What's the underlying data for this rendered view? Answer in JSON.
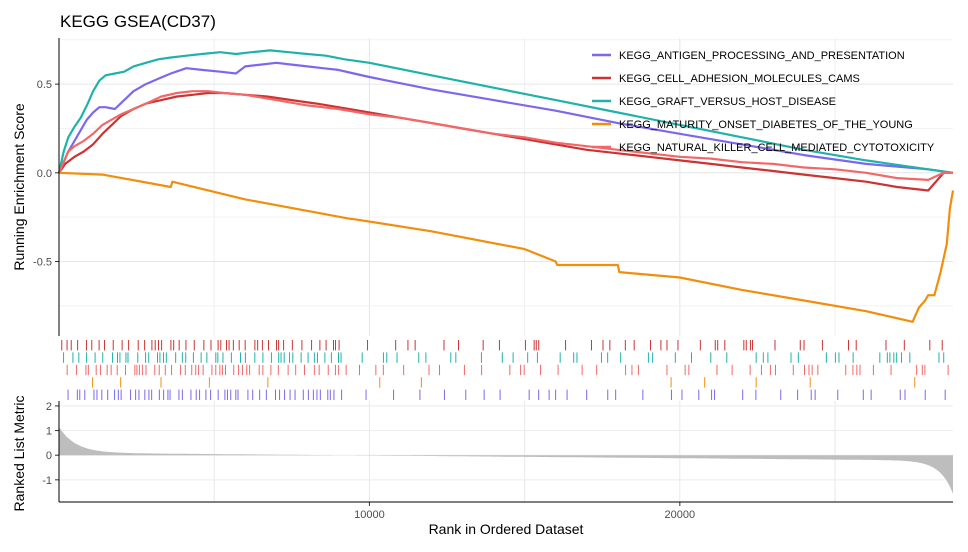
{
  "chart_data": {
    "type": "line",
    "title": "KEGG GSEA(CD37)",
    "xlabel": "Rank in Ordered Dataset",
    "ylabel_es": "Running Enrichment Score",
    "ylabel_metric": "Ranked List Metric",
    "x_range": [
      0,
      28800
    ],
    "x_ticks": [
      10000,
      20000
    ],
    "es_ylim": [
      -0.92,
      0.76
    ],
    "es_ticks": [
      0.5,
      0.0,
      -0.5
    ],
    "metric_ylim": [
      -1.9,
      2.2
    ],
    "metric_ticks": [
      2,
      1,
      0,
      -1
    ],
    "legend_position": "top-right",
    "series": [
      {
        "name": "KEGG_ANTIGEN_PROCESSING_AND_PRESENTATION",
        "color": "#7b68ee",
        "x": [
          0,
          150,
          300,
          500,
          700,
          900,
          1100,
          1300,
          1500,
          1800,
          2100,
          2400,
          2800,
          3200,
          3600,
          4100,
          4600,
          5200,
          5700,
          6000,
          6500,
          7000,
          7500,
          8000,
          8500,
          9000,
          9500,
          10000,
          12000,
          14000,
          16000,
          18000,
          20000,
          22000,
          24000,
          26000,
          28000,
          28800
        ],
        "y": [
          0.0,
          0.06,
          0.12,
          0.18,
          0.24,
          0.3,
          0.34,
          0.37,
          0.37,
          0.36,
          0.41,
          0.46,
          0.5,
          0.53,
          0.56,
          0.59,
          0.58,
          0.57,
          0.56,
          0.6,
          0.61,
          0.62,
          0.61,
          0.6,
          0.59,
          0.58,
          0.56,
          0.54,
          0.47,
          0.41,
          0.35,
          0.28,
          0.22,
          0.16,
          0.1,
          0.05,
          0.02,
          0.0
        ]
      },
      {
        "name": "KEGG_CELL_ADHESION_MOLECULES_CAMS",
        "color": "#cc3333",
        "x": [
          0,
          200,
          500,
          800,
          1100,
          1400,
          1700,
          2000,
          2400,
          2800,
          3300,
          3800,
          4300,
          4800,
          5300,
          6000,
          6700,
          7500,
          8300,
          9000,
          10000,
          11000,
          12000,
          13000,
          14000,
          15000,
          16000,
          17000,
          18000,
          19000,
          20000,
          21000,
          22000,
          23000,
          24000,
          25000,
          26000,
          27000,
          28000,
          28500,
          28800
        ],
        "y": [
          0.0,
          0.05,
          0.09,
          0.12,
          0.16,
          0.22,
          0.27,
          0.32,
          0.36,
          0.39,
          0.41,
          0.43,
          0.44,
          0.45,
          0.45,
          0.44,
          0.43,
          0.41,
          0.39,
          0.37,
          0.34,
          0.31,
          0.28,
          0.25,
          0.22,
          0.19,
          0.16,
          0.13,
          0.11,
          0.09,
          0.07,
          0.05,
          0.03,
          0.01,
          -0.01,
          -0.03,
          -0.05,
          -0.08,
          -0.1,
          0.0,
          0.0
        ]
      },
      {
        "name": "KEGG_GRAFT_VERSUS_HOST_DISEASE",
        "color": "#20b2aa",
        "x": [
          0,
          150,
          300,
          500,
          700,
          900,
          1100,
          1300,
          1500,
          1800,
          2100,
          2400,
          2800,
          3200,
          3600,
          4100,
          4600,
          5200,
          5700,
          6200,
          6800,
          7400,
          8000,
          8600,
          9200,
          10000,
          12000,
          14000,
          16000,
          18000,
          20000,
          22000,
          24000,
          26000,
          28000,
          28800
        ],
        "y": [
          0.0,
          0.12,
          0.2,
          0.26,
          0.31,
          0.38,
          0.46,
          0.52,
          0.55,
          0.56,
          0.57,
          0.6,
          0.62,
          0.64,
          0.65,
          0.66,
          0.67,
          0.68,
          0.67,
          0.68,
          0.69,
          0.68,
          0.67,
          0.66,
          0.64,
          0.62,
          0.55,
          0.48,
          0.41,
          0.34,
          0.27,
          0.2,
          0.13,
          0.07,
          0.02,
          0.0
        ]
      },
      {
        "name": "KEGG_MATURITY_ONSET_DIABETES_OF_THE_YOUNG",
        "color": "#f28e0c",
        "x": [
          0,
          1400,
          3600,
          3650,
          6000,
          9400,
          9450,
          12000,
          15000,
          16000,
          16050,
          18000,
          18050,
          20000,
          22000,
          24000,
          26000,
          27500,
          27700,
          27900,
          28000,
          28200,
          28400,
          28500,
          28600,
          28700,
          28800
        ],
        "y": [
          0.0,
          -0.01,
          -0.08,
          -0.05,
          -0.15,
          -0.26,
          -0.26,
          -0.33,
          -0.43,
          -0.5,
          -0.52,
          -0.52,
          -0.56,
          -0.59,
          -0.66,
          -0.72,
          -0.78,
          -0.84,
          -0.76,
          -0.72,
          -0.69,
          -0.69,
          -0.56,
          -0.48,
          -0.4,
          -0.2,
          -0.1
        ]
      },
      {
        "name": "KEGG_NATURAL_KILLER_CELL_MEDIATED_CYTOTOXICITY",
        "color": "#f26868",
        "x": [
          0,
          150,
          300,
          500,
          800,
          1100,
          1400,
          1700,
          2000,
          2400,
          2800,
          3300,
          3800,
          4300,
          4800,
          5300,
          6000,
          7000,
          8000,
          9000,
          10000,
          11000,
          12000,
          13000,
          14000,
          15000,
          16000,
          17000,
          18000,
          19000,
          20000,
          21000,
          22000,
          23000,
          24000,
          25000,
          26000,
          27000,
          28000,
          28500,
          28800
        ],
        "y": [
          0.0,
          0.06,
          0.12,
          0.15,
          0.18,
          0.22,
          0.27,
          0.3,
          0.33,
          0.36,
          0.39,
          0.43,
          0.45,
          0.46,
          0.46,
          0.45,
          0.44,
          0.41,
          0.38,
          0.36,
          0.33,
          0.31,
          0.28,
          0.25,
          0.22,
          0.2,
          0.17,
          0.15,
          0.13,
          0.11,
          0.09,
          0.08,
          0.06,
          0.05,
          0.03,
          0.02,
          0.0,
          -0.03,
          -0.04,
          0.0,
          0.0
        ]
      }
    ]
  }
}
